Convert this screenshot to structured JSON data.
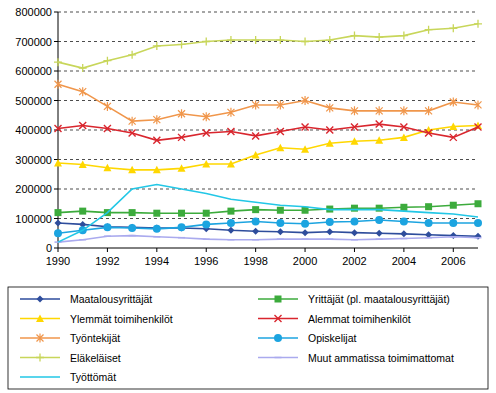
{
  "chart_data": {
    "type": "line",
    "grid": true,
    "legend": "bottom",
    "x": [
      1990,
      1991,
      1992,
      1993,
      1994,
      1995,
      1996,
      1997,
      1998,
      1999,
      2000,
      2001,
      2002,
      2003,
      2004,
      2005,
      2006,
      2007
    ],
    "xlim": [
      1990,
      2007
    ],
    "xticks": [
      1990,
      1992,
      1994,
      1996,
      1998,
      2000,
      2002,
      2004,
      2006
    ],
    "ylim": [
      0,
      800000
    ],
    "yticks": [
      0,
      100000,
      200000,
      300000,
      400000,
      500000,
      600000,
      700000,
      800000
    ],
    "series": [
      {
        "name": "Maatalousyrittäjät",
        "color": "#2e4d9c",
        "marker": "diamond",
        "values": [
          85000,
          80000,
          72000,
          70000,
          68000,
          68000,
          65000,
          60000,
          57000,
          55000,
          52000,
          55000,
          52000,
          50000,
          48000,
          45000,
          42000,
          40000
        ]
      },
      {
        "name": "Yrittäjät (pl. maatalousyrittäjät)",
        "color": "#3cab3c",
        "marker": "square",
        "values": [
          120000,
          125000,
          120000,
          120000,
          118000,
          118000,
          118000,
          125000,
          130000,
          128000,
          128000,
          132000,
          135000,
          135000,
          138000,
          140000,
          145000,
          150000
        ]
      },
      {
        "name": "Ylemmät toimihenkilöt",
        "color": "#ffd700",
        "marker": "triangle",
        "values": [
          288000,
          283000,
          272000,
          265000,
          265000,
          270000,
          285000,
          285000,
          315000,
          340000,
          335000,
          355000,
          362000,
          365000,
          375000,
          400000,
          412000,
          415000
        ]
      },
      {
        "name": "Alemmat toimihenkilöt",
        "color": "#d9262e",
        "marker": "x",
        "values": [
          405000,
          415000,
          405000,
          390000,
          365000,
          375000,
          390000,
          395000,
          380000,
          395000,
          410000,
          400000,
          410000,
          420000,
          410000,
          390000,
          375000,
          410000
        ]
      },
      {
        "name": "Työntekijät",
        "color": "#f0964b",
        "marker": "star",
        "values": [
          555000,
          530000,
          480000,
          430000,
          435000,
          455000,
          445000,
          460000,
          485000,
          485000,
          500000,
          475000,
          465000,
          465000,
          465000,
          465000,
          495000,
          485000
        ]
      },
      {
        "name": "Opiskelijat",
        "color": "#1ca4e0",
        "marker": "circle",
        "values": [
          50000,
          60000,
          70000,
          68000,
          65000,
          70000,
          80000,
          85000,
          90000,
          85000,
          82000,
          88000,
          90000,
          95000,
          90000,
          85000,
          85000,
          85000
        ]
      },
      {
        "name": "Eläkeläiset",
        "color": "#c8d65a",
        "marker": "plus",
        "values": [
          630000,
          610000,
          635000,
          655000,
          685000,
          690000,
          700000,
          705000,
          705000,
          705000,
          700000,
          705000,
          720000,
          715000,
          720000,
          740000,
          745000,
          760000
        ]
      },
      {
        "name": "Muut ammatissa toimimattomat",
        "color": "#aaaaee",
        "marker": "dash",
        "values": [
          20000,
          28000,
          40000,
          42000,
          38000,
          35000,
          30000,
          28000,
          28000,
          30000,
          30000,
          30000,
          28000,
          30000,
          32000,
          35000,
          38000,
          35000
        ]
      },
      {
        "name": "Työttömät",
        "color": "#22c7e6",
        "marker": "none",
        "values": [
          20000,
          60000,
          120000,
          200000,
          215000,
          200000,
          185000,
          165000,
          155000,
          145000,
          140000,
          130000,
          130000,
          130000,
          125000,
          120000,
          115000,
          105000
        ]
      }
    ]
  }
}
